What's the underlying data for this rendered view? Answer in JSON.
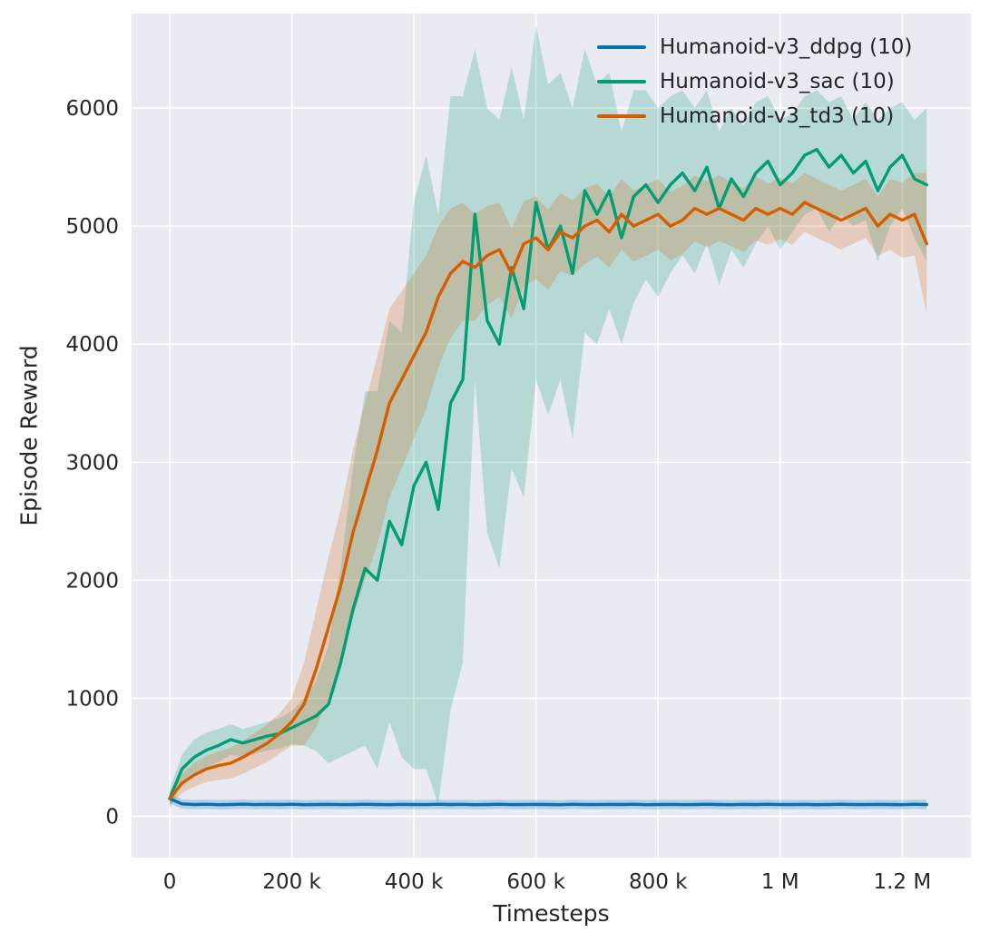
{
  "chart_data": {
    "type": "line",
    "title": "",
    "xlabel": "Timesteps",
    "ylabel": "Episode Reward",
    "xlim": [
      -62500,
      1312500
    ],
    "ylim": [
      -350,
      6800
    ],
    "grid": true,
    "legend_position": "upper right",
    "background": "#eaeaf2",
    "grid_color": "#ffffff",
    "text_color": "#262626",
    "band_alpha": 0.22,
    "x_ticks": [
      {
        "v": 0,
        "label": "0"
      },
      {
        "v": 200000,
        "label": "200 k"
      },
      {
        "v": 400000,
        "label": "400 k"
      },
      {
        "v": 600000,
        "label": "600 k"
      },
      {
        "v": 800000,
        "label": "800 k"
      },
      {
        "v": 1000000,
        "label": "1 M"
      },
      {
        "v": 1200000,
        "label": "1.2 M"
      }
    ],
    "y_ticks": [
      {
        "v": 0,
        "label": "0"
      },
      {
        "v": 1000,
        "label": "1000"
      },
      {
        "v": 2000,
        "label": "2000"
      },
      {
        "v": 3000,
        "label": "3000"
      },
      {
        "v": 4000,
        "label": "4000"
      },
      {
        "v": 5000,
        "label": "5000"
      },
      {
        "v": 6000,
        "label": "6000"
      }
    ],
    "x": [
      0,
      20000,
      40000,
      60000,
      80000,
      100000,
      120000,
      140000,
      160000,
      180000,
      200000,
      220000,
      240000,
      260000,
      280000,
      300000,
      320000,
      340000,
      360000,
      380000,
      400000,
      420000,
      440000,
      460000,
      480000,
      500000,
      520000,
      540000,
      560000,
      580000,
      600000,
      620000,
      640000,
      660000,
      680000,
      700000,
      720000,
      740000,
      760000,
      780000,
      800000,
      820000,
      840000,
      860000,
      880000,
      900000,
      920000,
      940000,
      960000,
      980000,
      1000000,
      1020000,
      1040000,
      1060000,
      1080000,
      1100000,
      1120000,
      1140000,
      1160000,
      1180000,
      1200000,
      1220000,
      1240000
    ],
    "series": [
      {
        "key": "ddpg",
        "name": "Humanoid-v3_ddpg",
        "label": "Humanoid-v3_ddpg (10)",
        "color": "#0173b2",
        "values": [
          150,
          105,
          100,
          102,
          98,
          100,
          103,
          99,
          101,
          100,
          102,
          98,
          100,
          101,
          99,
          100,
          102,
          100,
          98,
          101,
          100,
          99,
          102,
          100,
          101,
          98,
          100,
          102,
          99,
          100,
          101,
          100,
          98,
          102,
          100,
          99,
          101,
          100,
          102,
          98,
          100,
          101,
          99,
          100,
          102,
          100,
          98,
          101,
          100,
          102,
          99,
          100,
          101,
          98,
          100,
          102,
          100,
          99,
          101,
          100,
          98,
          102,
          100
        ],
        "spread": 40
      },
      {
        "key": "sac",
        "name": "Humanoid-v3_sac",
        "label": "Humanoid-v3_sac (10)",
        "color": "#029e73",
        "values": [
          150,
          400,
          500,
          560,
          600,
          650,
          620,
          650,
          680,
          700,
          750,
          800,
          850,
          950,
          1300,
          1750,
          2100,
          2000,
          2500,
          2300,
          2800,
          3000,
          2600,
          3500,
          3700,
          5100,
          4200,
          4000,
          4650,
          4300,
          5200,
          4800,
          5000,
          4600,
          5300,
          5100,
          5300,
          4900,
          5250,
          5350,
          5200,
          5350,
          5450,
          5300,
          5500,
          5150,
          5400,
          5250,
          5450,
          5550,
          5350,
          5450,
          5600,
          5650,
          5500,
          5600,
          5450,
          5550,
          5300,
          5500,
          5600,
          5400,
          5350
        ],
        "spread": [
          80,
          120,
          150,
          150,
          140,
          130,
          120,
          120,
          120,
          130,
          140,
          200,
          300,
          500,
          800,
          1200,
          1500,
          1600,
          1700,
          1800,
          2400,
          2600,
          2500,
          2600,
          2400,
          1400,
          1800,
          1900,
          1700,
          1600,
          1500,
          1400,
          1300,
          1400,
          1200,
          1100,
          1000,
          900,
          900,
          800,
          800,
          750,
          700,
          700,
          650,
          650,
          600,
          600,
          600,
          550,
          550,
          500,
          500,
          500,
          550,
          500,
          450,
          500,
          600,
          500,
          450,
          500,
          650
        ]
      },
      {
        "key": "td3",
        "name": "Humanoid-v3_td3",
        "label": "Humanoid-v3_td3 (10)",
        "color": "#d55e00",
        "values": [
          150,
          280,
          350,
          400,
          430,
          450,
          500,
          560,
          620,
          700,
          800,
          950,
          1250,
          1600,
          1950,
          2400,
          2750,
          3100,
          3500,
          3700,
          3900,
          4100,
          4400,
          4600,
          4700,
          4650,
          4750,
          4800,
          4600,
          4850,
          4900,
          4800,
          4950,
          4900,
          5000,
          5050,
          4950,
          5100,
          5000,
          5050,
          5100,
          5000,
          5050,
          5150,
          5100,
          5150,
          5100,
          5050,
          5150,
          5100,
          5150,
          5100,
          5200,
          5150,
          5100,
          5050,
          5100,
          5150,
          5000,
          5100,
          5050,
          5100,
          4850
        ],
        "spread": [
          60,
          80,
          100,
          110,
          120,
          130,
          140,
          150,
          160,
          170,
          200,
          350,
          500,
          600,
          650,
          700,
          750,
          800,
          800,
          750,
          700,
          650,
          600,
          550,
          500,
          450,
          420,
          400,
          380,
          360,
          350,
          340,
          330,
          320,
          320,
          310,
          300,
          300,
          300,
          300,
          300,
          290,
          290,
          280,
          280,
          280,
          270,
          270,
          270,
          260,
          260,
          260,
          250,
          250,
          250,
          250,
          250,
          250,
          250,
          300,
          320,
          350,
          600
        ]
      }
    ]
  }
}
